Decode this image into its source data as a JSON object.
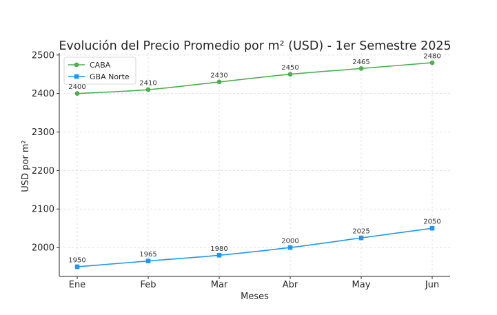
{
  "chart_data": {
    "type": "line",
    "title": "Evolución del Precio Promedio por m² (USD) - 1er Semestre 2025",
    "xlabel": "Meses",
    "ylabel": "USD por m²",
    "categories": [
      "Ene",
      "Feb",
      "Mar",
      "Abr",
      "May",
      "Jun"
    ],
    "ylim": [
      1925,
      2505
    ],
    "yticks": [
      2000,
      2100,
      2200,
      2300,
      2400,
      2500
    ],
    "grid": true,
    "legend_position": "top-left",
    "series": [
      {
        "name": "CABA",
        "values": [
          2400,
          2410,
          2430,
          2450,
          2465,
          2480
        ],
        "color": "#4caf50",
        "marker": "circle"
      },
      {
        "name": "GBA Norte",
        "values": [
          1950,
          1965,
          1980,
          2000,
          2025,
          2050
        ],
        "color": "#2196f3",
        "marker": "square"
      }
    ]
  }
}
